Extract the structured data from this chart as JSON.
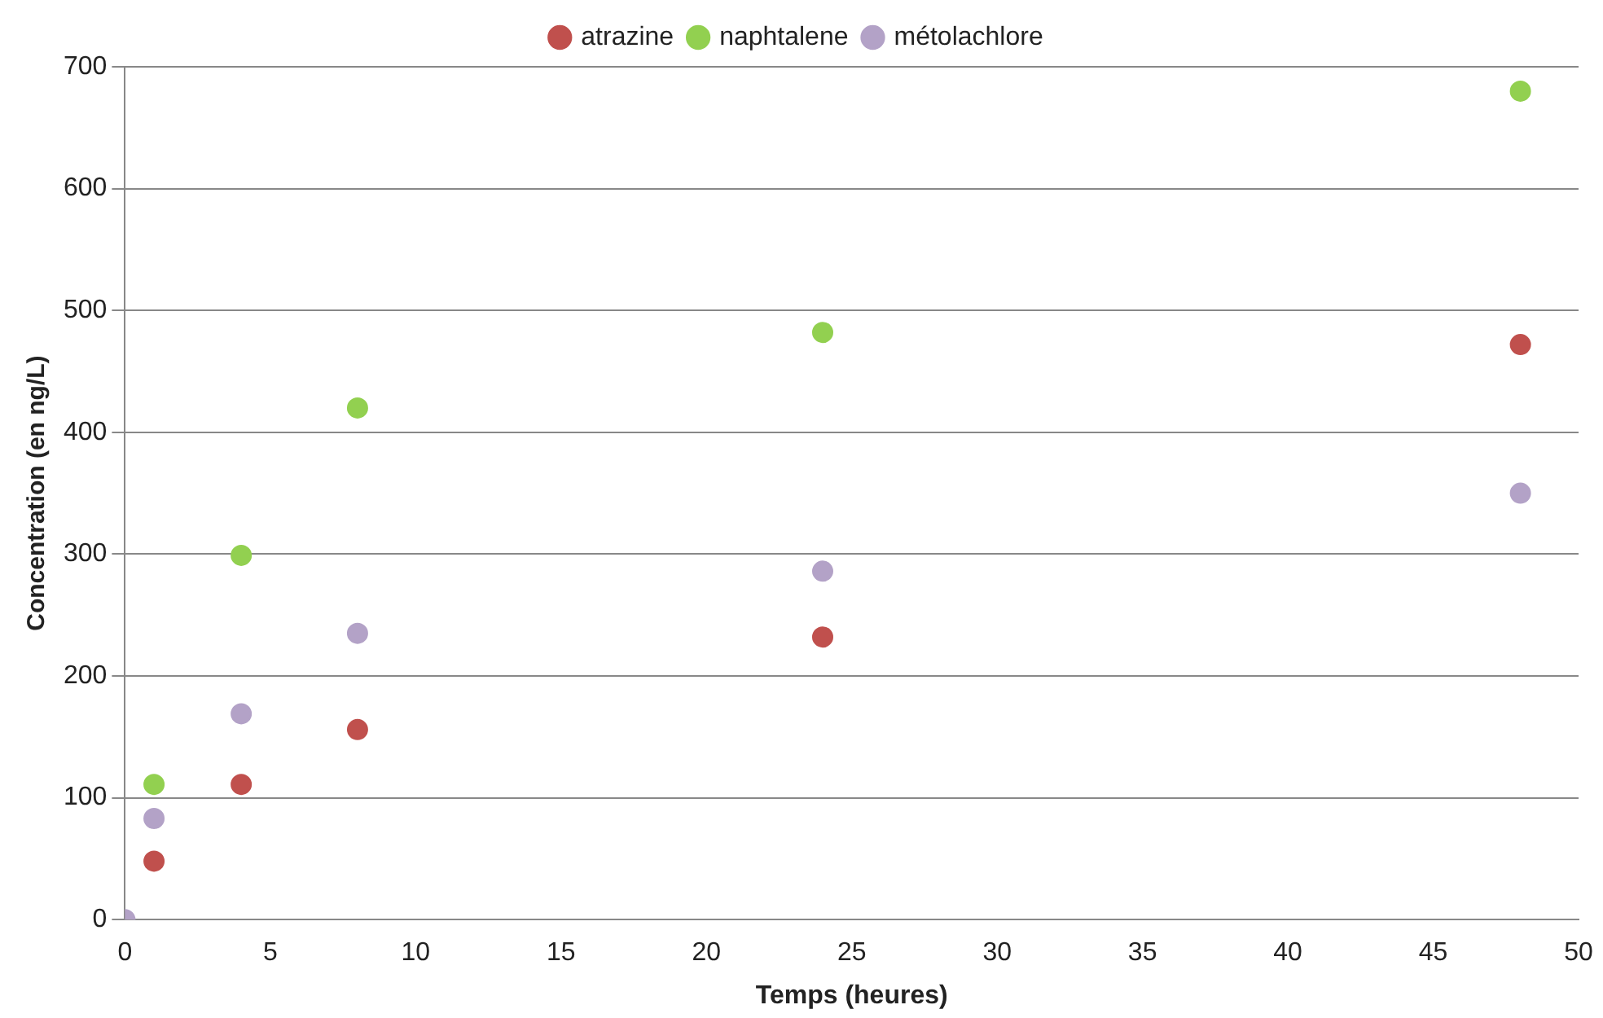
{
  "chart_data": {
    "type": "scatter",
    "xlabel": "Temps (heures)",
    "ylabel": "Concentration (en ng/L)",
    "x": [
      0,
      1,
      4,
      8,
      24,
      48
    ],
    "series": [
      {
        "name": "atrazine",
        "color": "#c0504d",
        "values": [
          null,
          48,
          111,
          156,
          232,
          472
        ]
      },
      {
        "name": "naphtalene",
        "color": "#92d050",
        "values": [
          null,
          111,
          299,
          420,
          482,
          680
        ]
      },
      {
        "name": "métolachlore",
        "color": "#b3a2c7",
        "values": [
          0,
          83,
          169,
          235,
          286,
          350
        ]
      }
    ],
    "xlim": [
      0,
      50
    ],
    "xticks": [
      0,
      5,
      10,
      15,
      20,
      25,
      30,
      35,
      40,
      45,
      50
    ],
    "ylim": [
      0,
      700
    ],
    "yticks": [
      0,
      100,
      200,
      300,
      400,
      500,
      600,
      700
    ],
    "grid": "y",
    "legend": "top",
    "marker": "circle"
  }
}
